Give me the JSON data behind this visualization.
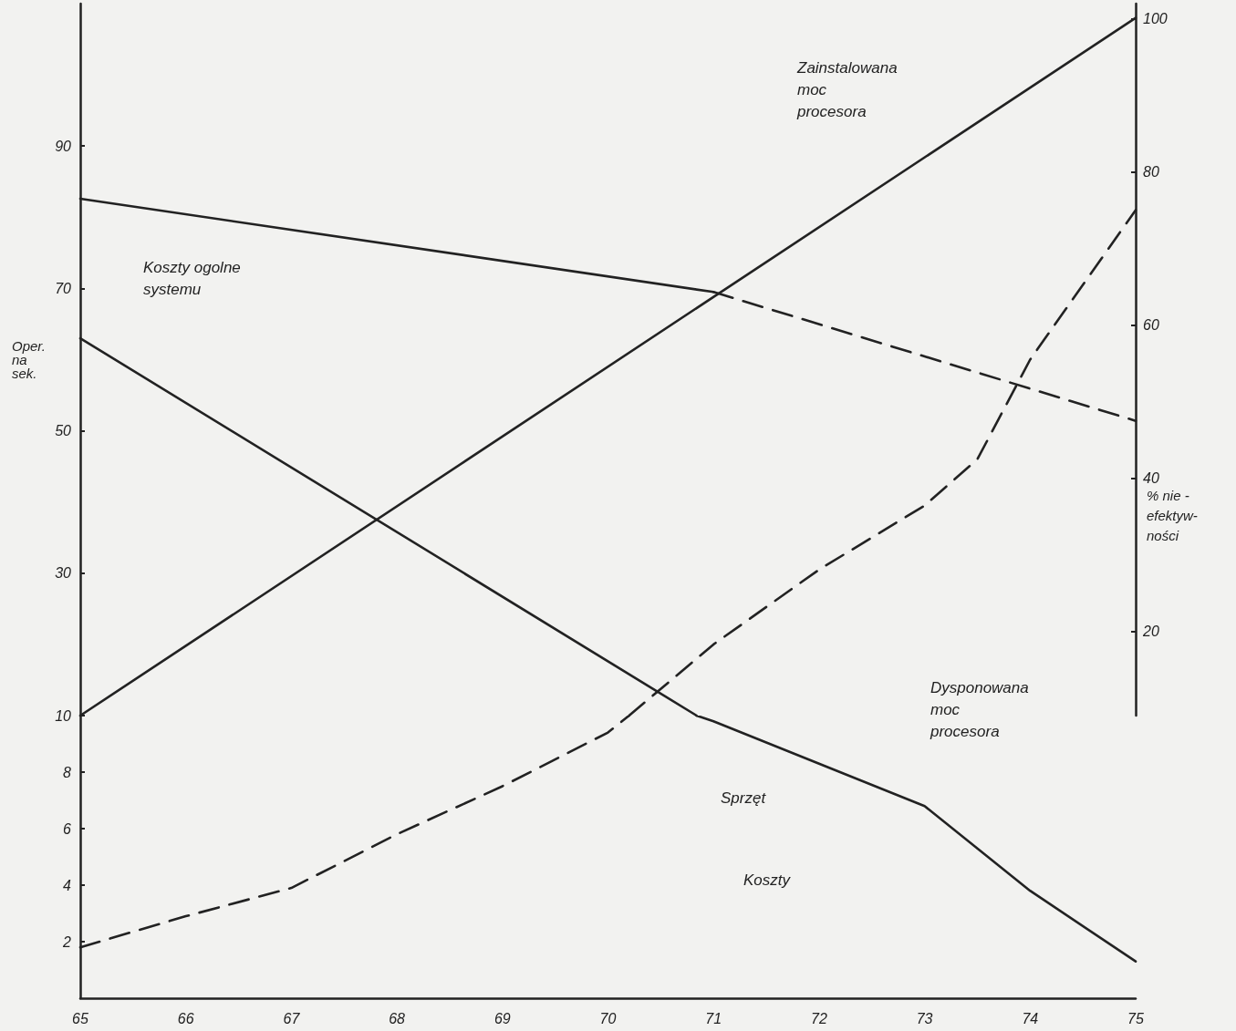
{
  "chart_data": [
    {
      "type": "line",
      "ylabel": "Oper.\nna\nsek.",
      "y2label": "% nie -\nefektyw-\nności",
      "xlim": [
        65,
        75
      ],
      "ylim": [
        10,
        110
      ],
      "yticks": [
        10,
        30,
        50,
        70,
        90
      ],
      "y2lim": [
        9,
        102
      ],
      "y2ticks": [
        20,
        40,
        60,
        80,
        100
      ],
      "tick_labels": "y",
      "marker": "none",
      "grid": false,
      "series": [
        {
          "color": "#222222",
          "x": [
            65,
            75
          ],
          "values": [
            10,
            108
          ]
        },
        {
          "color": "#222222",
          "x": [
            65,
            71
          ],
          "values": [
            82.6,
            69.5
          ]
        },
        {
          "color": "#222222",
          "x": [
            71,
            75
          ],
          "values": [
            69.5,
            51.4
          ],
          "line_style": "dashed"
        },
        {
          "color": "#222222",
          "x": [
            65,
            70.84
          ],
          "values": [
            63,
            10
          ]
        },
        {
          "color": "#222222",
          "x": [
            70.2,
            71,
            72,
            73,
            73.5,
            74,
            75
          ],
          "values": [
            10,
            20,
            30.5,
            39.5,
            46,
            60,
            81
          ],
          "line_style": "dashed"
        }
      ],
      "annotations": [
        "Zainstalowana\nmoc\nprocesora",
        "Koszty ogolne\nsystemu",
        "Dysponowana\nmoc\nprocesora"
      ]
    },
    {
      "type": "line",
      "xlim": [
        65,
        75
      ],
      "xticks": [
        65,
        66,
        67,
        68,
        69,
        70,
        71,
        72,
        73,
        74,
        75
      ],
      "ylim": [
        0,
        10
      ],
      "yticks": [
        2,
        4,
        6,
        8
      ],
      "marker": "none",
      "grid": false,
      "series": [
        {
          "color": "#222222",
          "x": [
            70.84,
            71,
            72,
            73,
            74,
            75
          ],
          "values": [
            10,
            9.8,
            8.3,
            6.8,
            3.8,
            1.3
          ]
        },
        {
          "color": "#222222",
          "x": [
            65,
            66,
            67,
            68,
            69,
            70,
            70.2
          ],
          "values": [
            1.8,
            2.9,
            3.9,
            5.8,
            7.5,
            9.4,
            10
          ],
          "line_style": "dashed"
        }
      ],
      "annotations": [
        "Sprzęt",
        "Koszty"
      ]
    }
  ]
}
